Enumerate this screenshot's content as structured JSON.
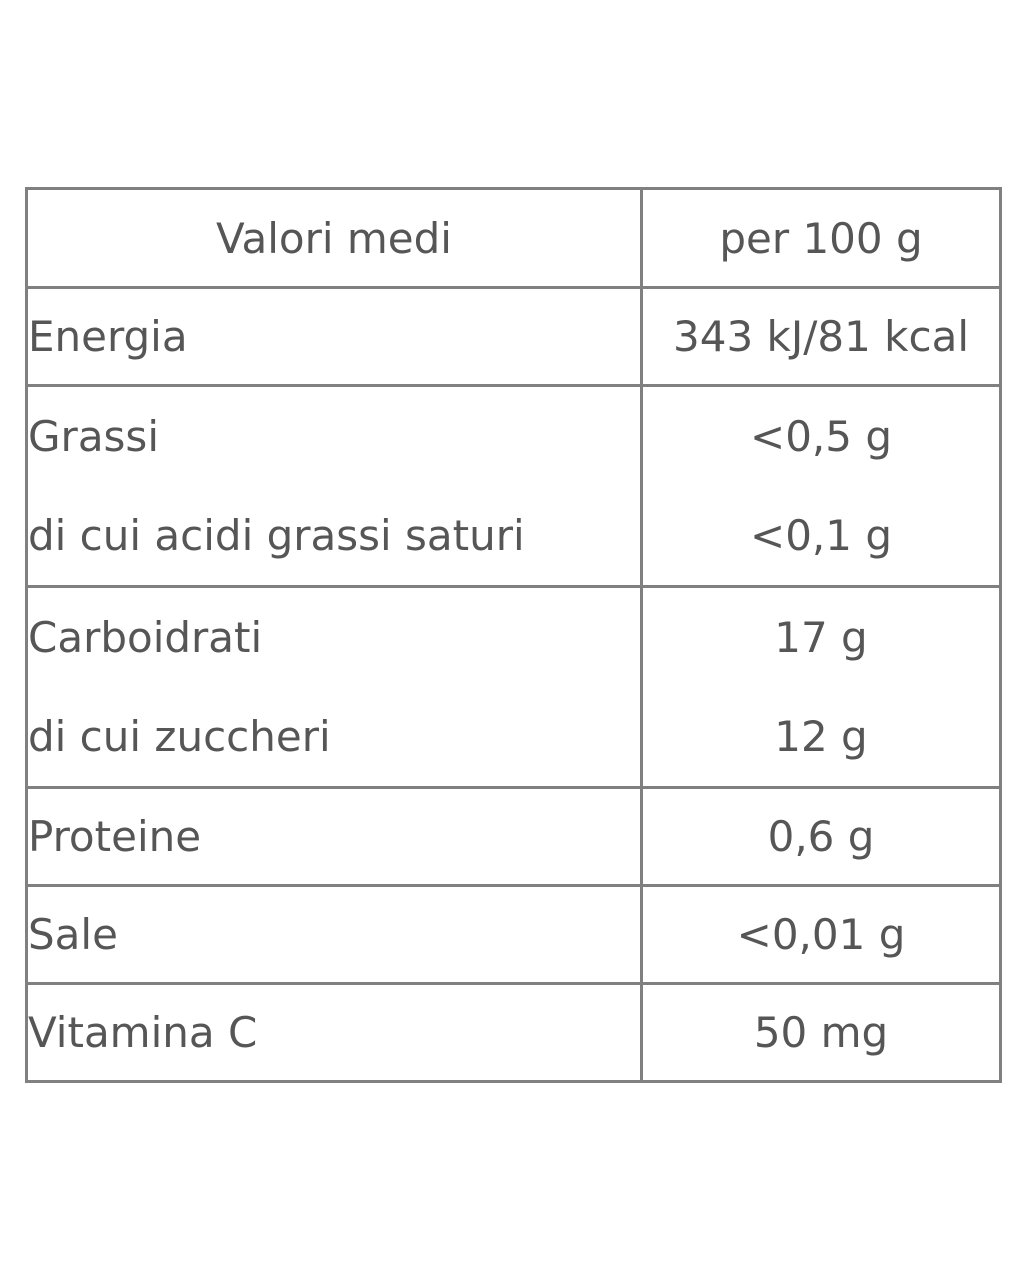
{
  "table": {
    "headers": [
      "Valori medi",
      "per 100 g"
    ],
    "rows": [
      {
        "labels": [
          "Energia"
        ],
        "values": [
          "343 kJ/81 kcal"
        ]
      },
      {
        "labels": [
          "Grassi",
          "di cui acidi grassi saturi"
        ],
        "values": [
          "<0,5 g",
          "<0,1 g"
        ]
      },
      {
        "labels": [
          "Carboidrati",
          "di cui zuccheri"
        ],
        "values": [
          "17 g",
          "12 g"
        ]
      },
      {
        "labels": [
          "Proteine"
        ],
        "values": [
          "0,6 g"
        ]
      },
      {
        "labels": [
          "Sale"
        ],
        "values": [
          "<0,01 g"
        ]
      },
      {
        "labels": [
          "Vitamina C"
        ],
        "values": [
          "50 mg"
        ]
      }
    ]
  }
}
